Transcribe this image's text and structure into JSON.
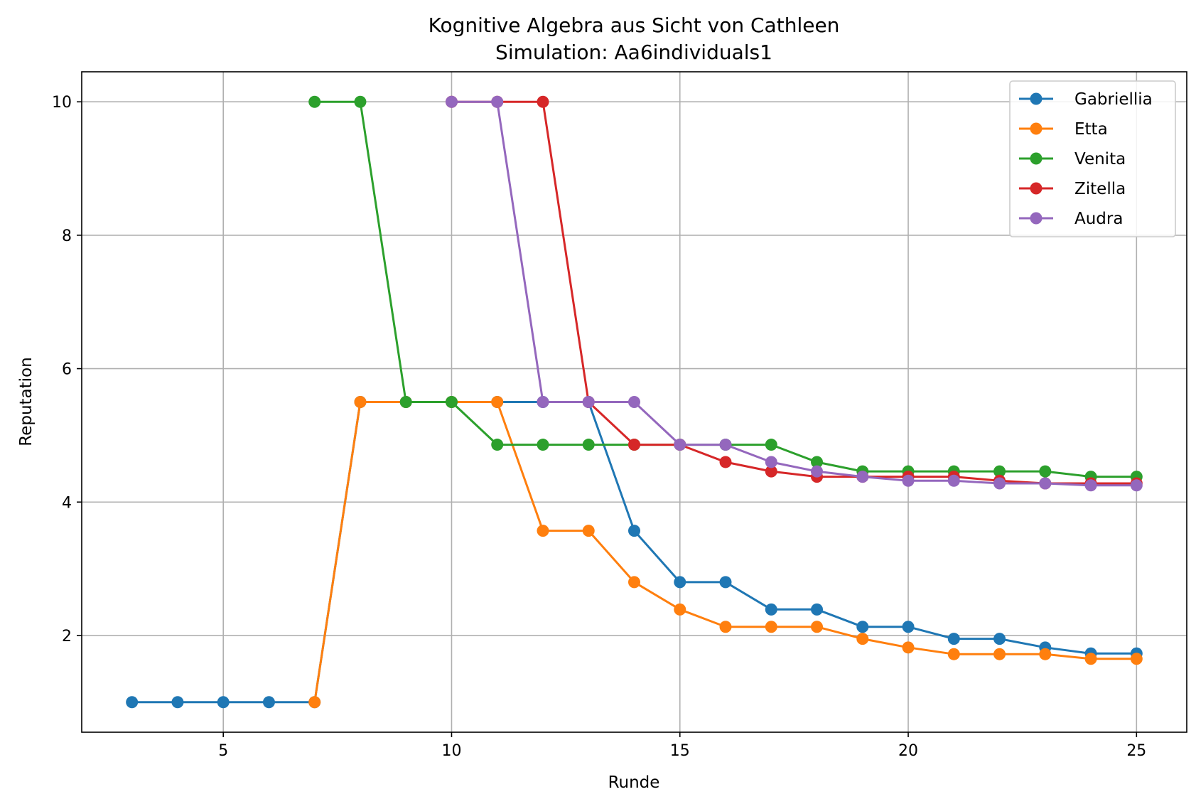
{
  "chart_data": {
    "type": "line",
    "title": "Kognitive Algebra aus Sicht von Cathleen",
    "subtitle": "Simulation: Aa6individuals1",
    "xlabel": "Runde",
    "ylabel": "Reputation",
    "xlim": [
      1.9,
      26.1
    ],
    "ylim": [
      0.55,
      10.45
    ],
    "xticks": [
      5,
      10,
      15,
      20,
      25
    ],
    "yticks": [
      2,
      4,
      6,
      8,
      10
    ],
    "grid": true,
    "legend_position": "top-right",
    "series": [
      {
        "name": "Gabriellia",
        "color": "#1f77b4",
        "x": [
          3,
          4,
          5,
          6,
          7,
          8,
          9,
          10,
          11,
          12,
          13,
          14,
          15,
          16,
          17,
          18,
          19,
          20,
          21,
          22,
          23,
          24,
          25
        ],
        "values": [
          1.0,
          1.0,
          1.0,
          1.0,
          1.0,
          5.5,
          5.5,
          5.5,
          5.5,
          5.5,
          5.5,
          3.57,
          2.8,
          2.8,
          2.39,
          2.39,
          2.13,
          2.13,
          1.95,
          1.95,
          1.82,
          1.73,
          1.73
        ]
      },
      {
        "name": "Etta",
        "color": "#ff7f0e",
        "x": [
          7,
          8,
          9,
          10,
          11,
          12,
          13,
          14,
          15,
          16,
          17,
          18,
          19,
          20,
          21,
          22,
          23,
          24,
          25
        ],
        "values": [
          1.0,
          5.5,
          5.5,
          5.5,
          5.5,
          3.57,
          3.57,
          2.8,
          2.39,
          2.13,
          2.13,
          2.13,
          1.95,
          1.82,
          1.72,
          1.72,
          1.72,
          1.65,
          1.65
        ]
      },
      {
        "name": "Venita",
        "color": "#2ca02c",
        "x": [
          7,
          8,
          9,
          10,
          11,
          12,
          13,
          14,
          15,
          16,
          17,
          18,
          19,
          20,
          21,
          22,
          23,
          24,
          25
        ],
        "values": [
          10.0,
          10.0,
          5.5,
          5.5,
          4.86,
          4.86,
          4.86,
          4.86,
          4.86,
          4.86,
          4.86,
          4.6,
          4.46,
          4.46,
          4.46,
          4.46,
          4.46,
          4.38,
          4.38
        ]
      },
      {
        "name": "Zitella",
        "color": "#d62728",
        "x": [
          10,
          11,
          12,
          13,
          14,
          15,
          16,
          17,
          18,
          19,
          20,
          21,
          22,
          23,
          24,
          25
        ],
        "values": [
          10.0,
          10.0,
          10.0,
          5.5,
          4.86,
          4.86,
          4.6,
          4.46,
          4.38,
          4.38,
          4.38,
          4.38,
          4.32,
          4.28,
          4.28,
          4.28
        ]
      },
      {
        "name": "Audra",
        "color": "#9467bd",
        "x": [
          10,
          11,
          12,
          13,
          14,
          15,
          16,
          17,
          18,
          19,
          20,
          21,
          22,
          23,
          24,
          25
        ],
        "values": [
          10.0,
          10.0,
          5.5,
          5.5,
          5.5,
          4.86,
          4.86,
          4.6,
          4.46,
          4.38,
          4.32,
          4.32,
          4.28,
          4.28,
          4.25,
          4.25
        ]
      }
    ]
  }
}
